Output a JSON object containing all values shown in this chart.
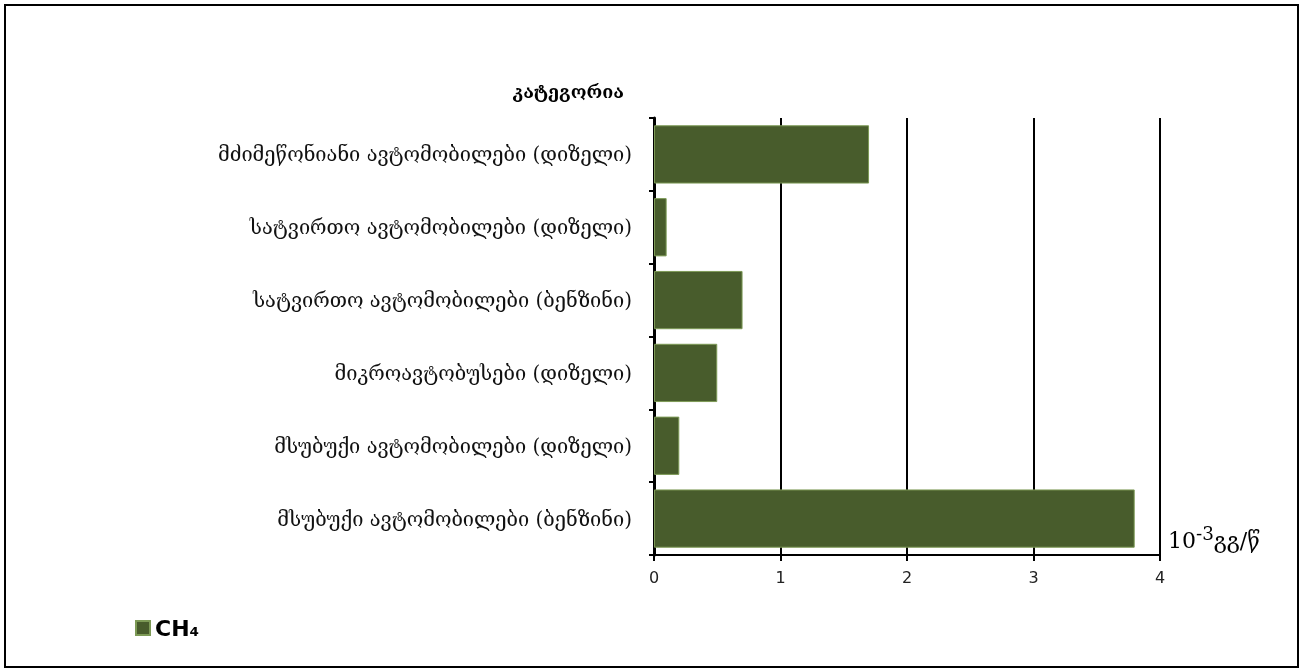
{
  "chart_data": {
    "type": "bar",
    "orientation": "horizontal",
    "ylabel": "კატეგორია",
    "xlabel": "10$^{-3}$გგ/წ",
    "categories": [
      "მძიმეწონიანი ავტომობილები (დიზელი)",
      "სატვირთო ავტომობილები (დიზელი)",
      "სატვირთო ავტომობილები (ბენზინი)",
      "მიკროავტობუსები (დიზელი)",
      "მსუბუქი ავტომობილები (დიზელი)",
      "მსუბუქი ავტომობილები (ბენზინი)"
    ],
    "series": [
      {
        "name": "CH₄",
        "color": "#485c2c",
        "values": [
          1.7,
          0.1,
          0.7,
          0.5,
          0.2,
          3.8
        ]
      }
    ],
    "xlim": [
      0,
      4
    ],
    "xticks": [
      0,
      1,
      2,
      3,
      4
    ],
    "grid": "x",
    "legend": "bottom left"
  }
}
